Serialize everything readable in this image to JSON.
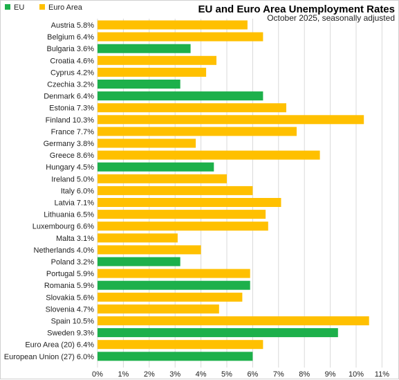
{
  "chart_data": {
    "type": "bar",
    "orientation": "horizontal",
    "title": "EU and Euro Area Unemployment Rates",
    "subtitle": "October 2025, seasonally adjusted",
    "legend": [
      {
        "name": "EU",
        "color": "#1db04b"
      },
      {
        "name": "Euro Area",
        "color": "#ffc000"
      }
    ],
    "legend_position": "top-left",
    "xlim": [
      0,
      11
    ],
    "x_ticks": [
      "0%",
      "1%",
      "2%",
      "3%",
      "4%",
      "5%",
      "6%",
      "7%",
      "8%",
      "9%",
      "10%",
      "11%"
    ],
    "grid": true,
    "categories": [
      "Austria 5.8%",
      "Belgium 6.4%",
      "Bulgaria 3.6%",
      "Croatia 4.6%",
      "Cyprus 4.2%",
      "Czechia 3.2%",
      "Denmark 6.4%",
      "Estonia 7.3%",
      "Finland 10.3%",
      "France 7.7%",
      "Germany 3.8%",
      "Greece 8.6%",
      "Hungary 4.5%",
      "Ireland 5.0%",
      "Italy 6.0%",
      "Latvia 7.1%",
      "Lithuania 6.5%",
      "Luxembourg 6.6%",
      "Malta 3.1%",
      "Netherlands 4.0%",
      "Poland 3.2%",
      "Portugal 5.9%",
      "Romania 5.9%",
      "Slovakia 5.6%",
      "Slovenia 4.7%",
      "Spain 10.5%",
      "Sweden 9.3%",
      "Euro Area (20) 6.4%",
      "European Union (27) 6.0%"
    ],
    "values": [
      5.8,
      6.4,
      3.6,
      4.6,
      4.2,
      3.2,
      6.4,
      7.3,
      10.3,
      7.7,
      3.8,
      8.6,
      4.5,
      5.0,
      6.0,
      7.1,
      6.5,
      6.6,
      3.1,
      4.0,
      3.2,
      5.9,
      5.9,
      5.6,
      4.7,
      10.5,
      9.3,
      6.4,
      6.0
    ],
    "groups": [
      "Euro Area",
      "Euro Area",
      "EU",
      "Euro Area",
      "Euro Area",
      "EU",
      "EU",
      "Euro Area",
      "Euro Area",
      "Euro Area",
      "Euro Area",
      "Euro Area",
      "EU",
      "Euro Area",
      "Euro Area",
      "Euro Area",
      "Euro Area",
      "Euro Area",
      "Euro Area",
      "Euro Area",
      "EU",
      "Euro Area",
      "EU",
      "Euro Area",
      "Euro Area",
      "Euro Area",
      "EU",
      "Euro Area",
      "EU"
    ]
  }
}
